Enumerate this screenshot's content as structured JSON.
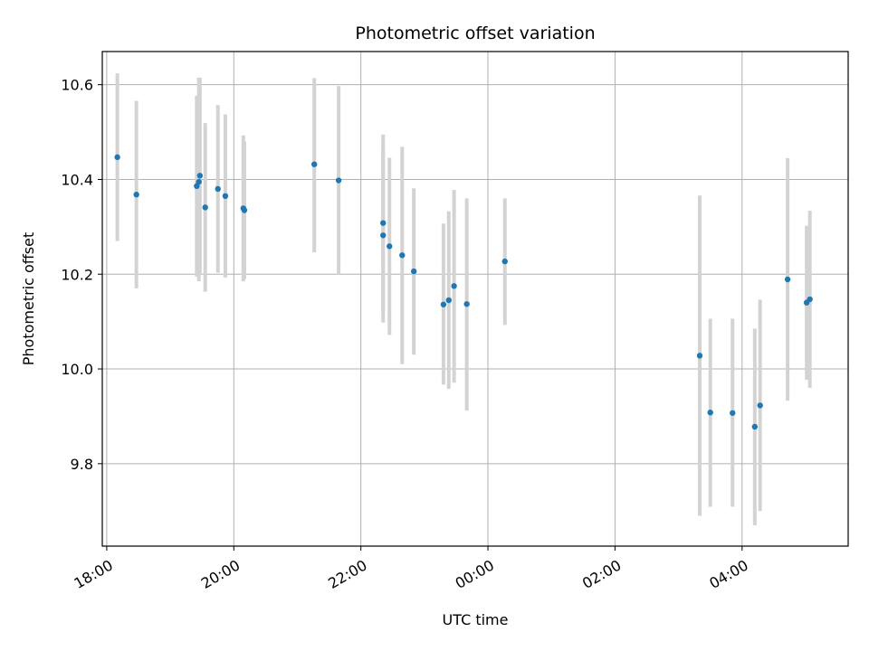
{
  "chart_data": {
    "type": "scatter",
    "title": "Photometric offset variation",
    "xlabel": "UTC time",
    "ylabel": "Photometric offset",
    "x_is_time": true,
    "x_axis_date": "reference day of the first tick (18:00); later ticks roll past midnight",
    "x_ticks": [
      "18:00",
      "20:00",
      "22:00",
      "00:00",
      "02:00",
      "04:00"
    ],
    "x_tick_values_h": [
      18,
      20,
      22,
      24,
      26,
      28
    ],
    "xlim_h": [
      17.93,
      29.67
    ],
    "y_ticks": [
      9.8,
      10.0,
      10.2,
      10.4,
      10.6
    ],
    "ylim": [
      9.626,
      10.67
    ],
    "grid": true,
    "marker_color": "#1f77b4",
    "errorbar_color": "#d3d3d3",
    "points": [
      {
        "t": "18:10",
        "y": 10.447,
        "lo": 10.27,
        "hi": 10.624
      },
      {
        "t": "18:28",
        "y": 10.368,
        "lo": 10.17,
        "hi": 10.566
      },
      {
        "t": "19:25",
        "y": 10.386,
        "lo": 10.195,
        "hi": 10.577
      },
      {
        "t": "19:27",
        "y": 10.395,
        "lo": 10.185,
        "hi": 10.615
      },
      {
        "t": "19:28",
        "y": 10.408,
        "lo": 10.2,
        "hi": 10.615
      },
      {
        "t": "19:33",
        "y": 10.341,
        "lo": 10.163,
        "hi": 10.519
      },
      {
        "t": "19:45",
        "y": 10.38,
        "lo": 10.203,
        "hi": 10.557
      },
      {
        "t": "19:52",
        "y": 10.365,
        "lo": 10.193,
        "hi": 10.537
      },
      {
        "t": "20:09",
        "y": 10.339,
        "lo": 10.185,
        "hi": 10.493
      },
      {
        "t": "20:10",
        "y": 10.335,
        "lo": 10.19,
        "hi": 10.48
      },
      {
        "t": "21:16",
        "y": 10.432,
        "lo": 10.246,
        "hi": 10.614
      },
      {
        "t": "21:39",
        "y": 10.398,
        "lo": 10.2,
        "hi": 10.597
      },
      {
        "t": "22:21",
        "y": 10.308,
        "lo": 10.12,
        "hi": 10.495
      },
      {
        "t": "22:21",
        "y": 10.282,
        "lo": 10.098,
        "hi": 10.466
      },
      {
        "t": "22:27",
        "y": 10.259,
        "lo": 10.072,
        "hi": 10.446
      },
      {
        "t": "22:39",
        "y": 10.24,
        "lo": 10.01,
        "hi": 10.469
      },
      {
        "t": "22:50",
        "y": 10.206,
        "lo": 10.03,
        "hi": 10.381
      },
      {
        "t": "23:18",
        "y": 10.136,
        "lo": 9.967,
        "hi": 10.307
      },
      {
        "t": "23:23",
        "y": 10.145,
        "lo": 9.958,
        "hi": 10.333
      },
      {
        "t": "23:28",
        "y": 10.175,
        "lo": 9.971,
        "hi": 10.378
      },
      {
        "t": "23:40",
        "y": 10.137,
        "lo": 9.912,
        "hi": 10.36
      },
      {
        "t": "00:16",
        "y": 10.227,
        "lo": 10.093,
        "hi": 10.36
      },
      {
        "t": "03:20",
        "y": 10.028,
        "lo": 9.69,
        "hi": 10.366
      },
      {
        "t": "03:30",
        "y": 9.908,
        "lo": 9.709,
        "hi": 10.106
      },
      {
        "t": "03:51",
        "y": 9.907,
        "lo": 9.709,
        "hi": 10.106
      },
      {
        "t": "04:12",
        "y": 9.878,
        "lo": 9.67,
        "hi": 10.085
      },
      {
        "t": "04:17",
        "y": 9.923,
        "lo": 9.7,
        "hi": 10.146
      },
      {
        "t": "04:43",
        "y": 10.189,
        "lo": 9.933,
        "hi": 10.445
      },
      {
        "t": "05:01",
        "y": 10.14,
        "lo": 9.977,
        "hi": 10.302
      },
      {
        "t": "05:04",
        "y": 10.147,
        "lo": 9.96,
        "hi": 10.334
      }
    ]
  }
}
